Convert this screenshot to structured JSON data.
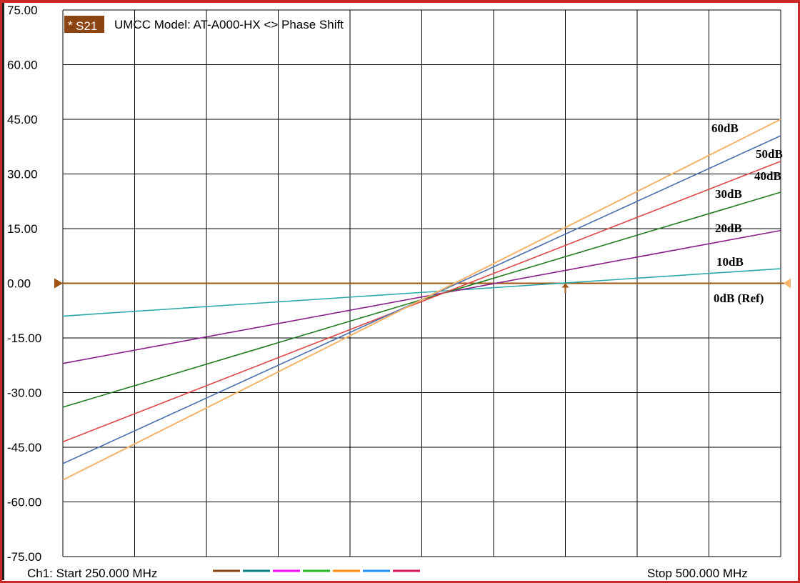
{
  "trace_badge": "S21",
  "title": "UMCC  Model: AT-A000-HX <> Phase Shift",
  "footer": {
    "start": "Ch1: Start  250.000 MHz",
    "stop": "Stop  500.000 MHz",
    "channel_colors": [
      "#8b4513",
      "#008080",
      "#ff00ff",
      "#22bb22",
      "#ff8c00",
      "#1e90ff",
      "#e0105a"
    ]
  },
  "colors": {
    "frame": "#cc2a2a",
    "reference_line": "#a0520f",
    "grid": "#000000"
  },
  "chart_data": {
    "type": "line",
    "x_start_mhz": 250,
    "x_stop_mhz": 500,
    "x_divisions": 10,
    "ylim": [
      -75,
      75
    ],
    "yticks": [
      "75.00",
      "60.00",
      "45.00",
      "30.00",
      "15.00",
      "0.00",
      "-15.00",
      "-30.00",
      "-45.00",
      "-60.00",
      "-75.00"
    ],
    "grid": true,
    "reference_level": 0,
    "series": [
      {
        "name": "10dB",
        "color": "#2aa8a8",
        "x": [
          250,
          500
        ],
        "y": [
          -9,
          4
        ]
      },
      {
        "name": "20dB",
        "color": "#8a1f8a",
        "x": [
          250,
          500
        ],
        "y": [
          -22,
          14.5
        ]
      },
      {
        "name": "30dB",
        "color": "#1f7a1f",
        "x": [
          250,
          500
        ],
        "y": [
          -34,
          25
        ]
      },
      {
        "name": "40dB",
        "color": "#e04848",
        "x": [
          250,
          500
        ],
        "y": [
          -43.5,
          33.5
        ]
      },
      {
        "name": "50dB",
        "color": "#4a6fae",
        "x": [
          250,
          500
        ],
        "y": [
          -49.5,
          40.5
        ]
      },
      {
        "name": "60dB",
        "color": "#f5b36a",
        "x": [
          250,
          500
        ],
        "y": [
          -54,
          45
        ]
      }
    ],
    "labels": [
      "60dB",
      "50dB",
      "40dB",
      "30dB",
      "20dB",
      "10dB",
      "0dB (Ref)"
    ]
  }
}
